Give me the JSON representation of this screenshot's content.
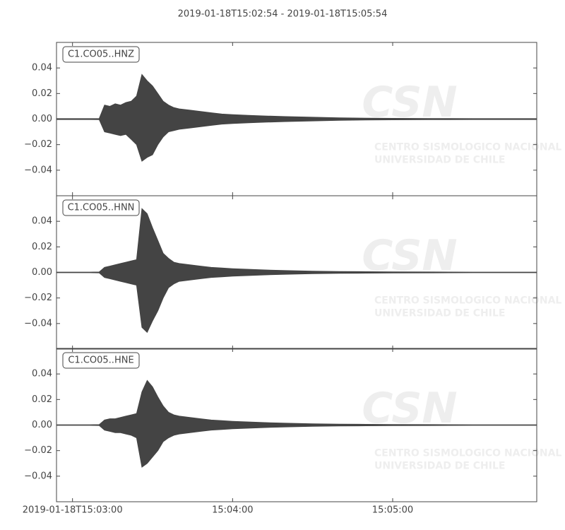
{
  "title": "2019-01-18T15:02:54  -  2019-01-18T15:05:54",
  "watermark": {
    "logo": "CSN",
    "line1": "CENTRO SISMOLOGICO NACIONAL",
    "line2": "UNIVERSIDAD DE CHILE"
  },
  "chart_data": [
    {
      "type": "area",
      "label": "C1.CO05..HNZ",
      "color": "#444444",
      "x": [
        "15:02:54",
        "15:03:00",
        "15:03:06",
        "15:03:10",
        "15:03:12",
        "15:03:14",
        "15:03:16",
        "15:03:18",
        "15:03:20",
        "15:03:22",
        "15:03:24",
        "15:03:26",
        "15:03:28",
        "15:03:30",
        "15:03:32",
        "15:03:34",
        "15:03:36",
        "15:03:38",
        "15:03:40",
        "15:03:44",
        "15:03:48",
        "15:03:52",
        "15:03:56",
        "15:04:00",
        "15:04:06",
        "15:04:12",
        "15:04:20",
        "15:04:30",
        "15:04:40",
        "15:04:50",
        "15:05:00",
        "15:05:15",
        "15:05:30",
        "15:05:45",
        "15:05:54"
      ],
      "high": [
        0.0004,
        0.0004,
        0.0004,
        0.0005,
        0.011,
        0.01,
        0.012,
        0.011,
        0.013,
        0.014,
        0.018,
        0.035,
        0.03,
        0.026,
        0.02,
        0.014,
        0.011,
        0.009,
        0.008,
        0.007,
        0.006,
        0.005,
        0.004,
        0.0035,
        0.003,
        0.0025,
        0.002,
        0.0015,
        0.001,
        0.0008,
        0.0006,
        0.0005,
        0.0004,
        0.0004,
        0.0004
      ],
      "low": [
        -0.0004,
        -0.0004,
        -0.0004,
        -0.0005,
        -0.01,
        -0.011,
        -0.012,
        -0.013,
        -0.012,
        -0.016,
        -0.02,
        -0.033,
        -0.03,
        -0.028,
        -0.02,
        -0.014,
        -0.01,
        -0.009,
        -0.008,
        -0.007,
        -0.006,
        -0.005,
        -0.004,
        -0.0035,
        -0.003,
        -0.0025,
        -0.002,
        -0.0015,
        -0.001,
        -0.0008,
        -0.0006,
        -0.0005,
        -0.0004,
        -0.0004,
        -0.0004
      ],
      "xlim": [
        "15:02:54",
        "15:05:54"
      ],
      "ylim": [
        -0.06,
        0.06
      ],
      "yticks": [
        {
          "value": -0.04,
          "label": "−0.04"
        },
        {
          "value": -0.02,
          "label": "−0.02"
        },
        {
          "value": 0,
          "label": "0.00"
        },
        0.02,
        0.04
      ]
    },
    {
      "type": "area",
      "label": "C1.CO05..HNN",
      "color": "#444444",
      "x": [
        "15:02:54",
        "15:03:00",
        "15:03:06",
        "15:03:10",
        "15:03:12",
        "15:03:14",
        "15:03:16",
        "15:03:18",
        "15:03:20",
        "15:03:22",
        "15:03:24",
        "15:03:26",
        "15:03:28",
        "15:03:30",
        "15:03:32",
        "15:03:34",
        "15:03:36",
        "15:03:38",
        "15:03:40",
        "15:03:44",
        "15:03:48",
        "15:03:52",
        "15:03:56",
        "15:04:00",
        "15:04:06",
        "15:04:12",
        "15:04:20",
        "15:04:30",
        "15:04:40",
        "15:04:50",
        "15:05:00",
        "15:05:15",
        "15:05:30",
        "15:05:45",
        "15:05:54"
      ],
      "high": [
        0.0003,
        0.0003,
        0.0003,
        0.0004,
        0.004,
        0.005,
        0.006,
        0.007,
        0.008,
        0.009,
        0.01,
        0.05,
        0.046,
        0.035,
        0.025,
        0.015,
        0.011,
        0.008,
        0.007,
        0.006,
        0.005,
        0.004,
        0.0035,
        0.003,
        0.0025,
        0.002,
        0.0015,
        0.001,
        0.0008,
        0.0006,
        0.0005,
        0.0004,
        0.0003,
        0.0003,
        0.0003
      ],
      "low": [
        -0.0003,
        -0.0003,
        -0.0003,
        -0.0004,
        -0.004,
        -0.005,
        -0.006,
        -0.007,
        -0.008,
        -0.009,
        -0.01,
        -0.043,
        -0.047,
        -0.038,
        -0.03,
        -0.02,
        -0.012,
        -0.009,
        -0.007,
        -0.006,
        -0.005,
        -0.004,
        -0.0035,
        -0.003,
        -0.0025,
        -0.002,
        -0.0015,
        -0.001,
        -0.0008,
        -0.0006,
        -0.0005,
        -0.0004,
        -0.0003,
        -0.0003,
        -0.0003
      ],
      "xlim": [
        "15:02:54",
        "15:05:54"
      ],
      "ylim": [
        -0.06,
        0.06
      ],
      "yticks": [
        {
          "value": -0.04,
          "label": "−0.04"
        },
        {
          "value": -0.02,
          "label": "−0.02"
        },
        {
          "value": 0,
          "label": "0.00"
        },
        0.02,
        0.04
      ]
    },
    {
      "type": "area",
      "label": "C1.CO05..HNE",
      "color": "#444444",
      "x": [
        "15:02:54",
        "15:03:00",
        "15:03:06",
        "15:03:10",
        "15:03:12",
        "15:03:14",
        "15:03:16",
        "15:03:18",
        "15:03:20",
        "15:03:22",
        "15:03:24",
        "15:03:26",
        "15:03:28",
        "15:03:30",
        "15:03:32",
        "15:03:34",
        "15:03:36",
        "15:03:38",
        "15:03:40",
        "15:03:44",
        "15:03:48",
        "15:03:52",
        "15:03:56",
        "15:04:00",
        "15:04:06",
        "15:04:12",
        "15:04:20",
        "15:04:30",
        "15:04:40",
        "15:04:50",
        "15:05:00",
        "15:05:15",
        "15:05:30",
        "15:05:45",
        "15:05:54"
      ],
      "high": [
        0.0003,
        0.0003,
        0.0003,
        0.0004,
        0.004,
        0.005,
        0.005,
        0.006,
        0.007,
        0.008,
        0.009,
        0.026,
        0.035,
        0.03,
        0.022,
        0.015,
        0.01,
        0.008,
        0.007,
        0.006,
        0.005,
        0.004,
        0.0035,
        0.003,
        0.0025,
        0.002,
        0.0015,
        0.001,
        0.0008,
        0.0006,
        0.0005,
        0.0004,
        0.0003,
        0.0003,
        0.0003
      ],
      "low": [
        -0.0003,
        -0.0003,
        -0.0003,
        -0.0004,
        -0.004,
        -0.005,
        -0.006,
        -0.006,
        -0.007,
        -0.008,
        -0.01,
        -0.033,
        -0.03,
        -0.025,
        -0.02,
        -0.013,
        -0.01,
        -0.008,
        -0.007,
        -0.006,
        -0.005,
        -0.004,
        -0.0035,
        -0.003,
        -0.0025,
        -0.002,
        -0.0015,
        -0.001,
        -0.0008,
        -0.0006,
        -0.0005,
        -0.0004,
        -0.0003,
        -0.0003,
        -0.0003
      ],
      "xlim": [
        "15:02:54",
        "15:05:54"
      ],
      "ylim": [
        -0.06,
        0.06
      ],
      "yticks": [
        {
          "value": -0.04,
          "label": "−0.04"
        },
        {
          "value": -0.02,
          "label": "−0.02"
        },
        {
          "value": 0,
          "label": "0.00"
        },
        0.02,
        0.04
      ],
      "xticks": [
        {
          "value": "15:03:00",
          "label": "2019-01-18T15:03:00"
        },
        "15:04:00",
        "15:05:00"
      ]
    }
  ]
}
